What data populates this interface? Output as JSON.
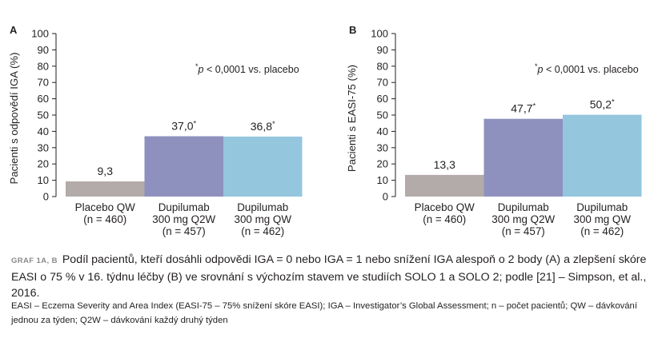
{
  "chart_data": [
    {
      "type": "bar",
      "panel_label": "A",
      "ylabel": "Pacienti s odpovědí IGA (%)",
      "ylim": [
        0,
        100
      ],
      "yticks": [
        0,
        10,
        20,
        30,
        40,
        50,
        60,
        70,
        80,
        90,
        100
      ],
      "annotation": "*p < 0,0001 vs. placebo",
      "categories": [
        [
          "Placebo QW",
          "(n = 460)"
        ],
        [
          "Dupilumab",
          "300 mg Q2W",
          "(n = 457)"
        ],
        [
          "Dupilumab",
          "300 mg QW",
          "(n = 462)"
        ]
      ],
      "values": [
        9.3,
        37.0,
        36.8
      ],
      "value_labels": [
        "9,3",
        "37,0*",
        "36,8*"
      ],
      "colors": [
        "#b3aba9",
        "#8e91be",
        "#94c6de"
      ]
    },
    {
      "type": "bar",
      "panel_label": "B",
      "ylabel": "Pacienti s EASI-75 (%)",
      "ylim": [
        0,
        100
      ],
      "yticks": [
        0,
        10,
        20,
        30,
        40,
        50,
        60,
        70,
        80,
        90,
        100
      ],
      "annotation": "*p < 0,0001 vs. placebo",
      "categories": [
        [
          "Placebo QW",
          "(n = 460)"
        ],
        [
          "Dupilumab",
          "300 mg Q2W",
          "(n = 457)"
        ],
        [
          "Dupilumab",
          "300 mg QW",
          "(n = 462)"
        ]
      ],
      "values": [
        13.3,
        47.7,
        50.2
      ],
      "value_labels": [
        "13,3",
        "47,7*",
        "50,2*"
      ],
      "colors": [
        "#b3aba9",
        "#8e91be",
        "#94c6de"
      ]
    }
  ],
  "caption": {
    "label": "GRAF 1A, B",
    "text": "Podíl pacientů, kteří dosáhli odpovědi IGA = 0 nebo IGA = 1 nebo snížení IGA alespoň o 2 body (A) a zlepšení skóre EASI o 75 % v 16. týdnu léčby (B) ve srovnání s výchozím stavem ve studiích SOLO 1 a SOLO 2; podle [21] – Simpson, et al., 2016."
  },
  "footnote": "EASI – Eczema Severity and Area Index (EASI-75 – 75% snížení skóre EASI); IGA – Investigator’s Global Assessment; n – počet pacientů; QW – dávkování jednou za týden; Q2W – dávkování každý druhý týden"
}
